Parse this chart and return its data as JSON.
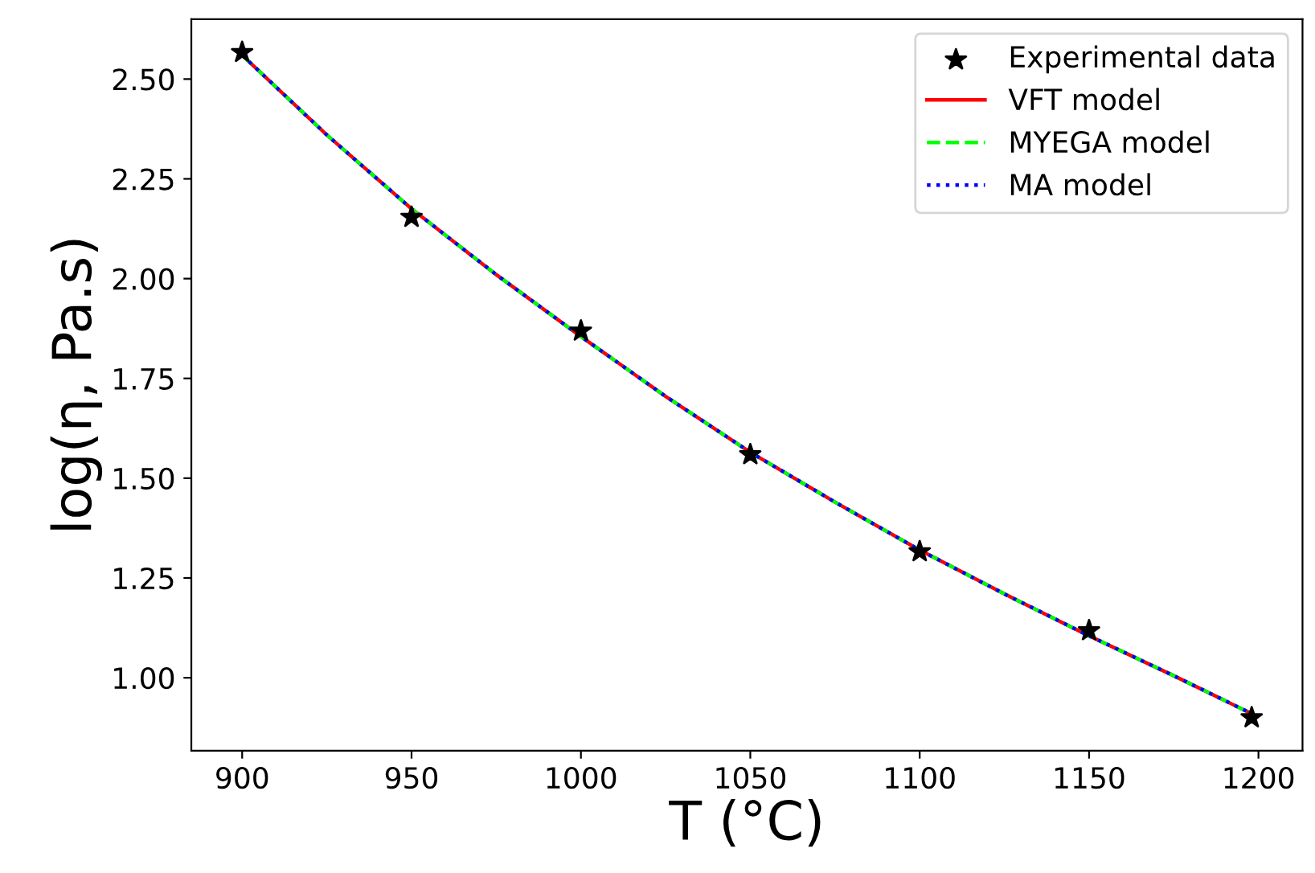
{
  "chart_data": {
    "type": "line",
    "xlabel": "T (°C)",
    "ylabel": "log(η, Pa.s)",
    "xlim": [
      885,
      1213
    ],
    "ylim": [
      0.817,
      2.65
    ],
    "xticks": [
      900,
      950,
      1000,
      1050,
      1100,
      1150,
      1200
    ],
    "yticks": [
      {
        "value": 1.0,
        "label": "1.00"
      },
      {
        "value": 1.25,
        "label": "1.25"
      },
      {
        "value": 1.5,
        "label": "1.50"
      },
      {
        "value": 1.75,
        "label": "1.75"
      },
      {
        "value": 2.0,
        "label": "2.00"
      },
      {
        "value": 2.25,
        "label": "2.25"
      },
      {
        "value": 2.5,
        "label": "2.50"
      }
    ],
    "grid": false,
    "legend": "top right",
    "series": [
      {
        "name": "Experimental data",
        "type": "scatter",
        "marker": "star",
        "color": "#000000",
        "x": [
          900,
          950,
          1000,
          1050,
          1100,
          1150,
          1198
        ],
        "values": [
          2.567,
          2.154,
          1.869,
          1.559,
          1.316,
          1.118,
          0.9
        ]
      },
      {
        "name": "VFT model",
        "line_style": "solid",
        "color": "#ff0000",
        "x": [
          900,
          925,
          950,
          975,
          1000,
          1025,
          1050,
          1075,
          1100,
          1125,
          1150,
          1175,
          1198
        ],
        "values": [
          2.56,
          2.36,
          2.175,
          2.01,
          1.855,
          1.705,
          1.565,
          1.44,
          1.32,
          1.21,
          1.105,
          1.005,
          0.91
        ]
      },
      {
        "name": "MYEGA model",
        "line_style": "dashed",
        "color": "#00ff00",
        "x": [
          900,
          925,
          950,
          975,
          1000,
          1025,
          1050,
          1075,
          1100,
          1125,
          1150,
          1175,
          1198
        ],
        "values": [
          2.56,
          2.36,
          2.175,
          2.01,
          1.855,
          1.705,
          1.565,
          1.44,
          1.32,
          1.21,
          1.105,
          1.005,
          0.91
        ]
      },
      {
        "name": "MA model",
        "line_style": "dotted",
        "color": "#0000ff",
        "x": [
          900,
          925,
          950,
          975,
          1000,
          1025,
          1050,
          1075,
          1100,
          1125,
          1150,
          1175,
          1198
        ],
        "values": [
          2.56,
          2.36,
          2.175,
          2.01,
          1.855,
          1.705,
          1.565,
          1.44,
          1.32,
          1.21,
          1.105,
          1.005,
          0.91
        ]
      }
    ]
  }
}
